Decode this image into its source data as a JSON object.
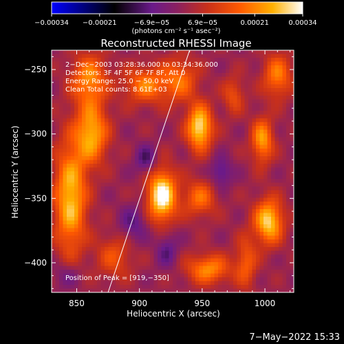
{
  "chart_data": {
    "type": "heatmap",
    "title": "Reconstructed RHESSI Image",
    "xlabel": "Heliocentric X (arcsec)",
    "ylabel": "Heliocentric Y (arcsec)",
    "xlim": [
      830,
      1023
    ],
    "ylim": [
      -423,
      -235
    ],
    "xticks": [
      850,
      900,
      950,
      1000
    ],
    "yticks": [
      -250,
      -300,
      -350,
      -400
    ],
    "xtick_labels": [
      "850",
      "900",
      "950",
      "1000"
    ],
    "ytick_labels": [
      "−250",
      "−300",
      "−350",
      "−400"
    ],
    "colorbar": {
      "min": -0.00034,
      "max": 0.00034,
      "ticks": [
        -0.00034,
        -0.00021,
        -6.9e-05,
        6.9e-05,
        0.00021,
        0.00034
      ],
      "tick_labels": [
        "−0.00034",
        "−0.00021",
        "−6.9e−05",
        "6.9e−05",
        "0.00021",
        "0.00034"
      ],
      "units": "(photons cm⁻² s⁻¹ asec⁻²)"
    },
    "annotations": [
      "2−Dec−2003 03:28:36.000 to 03:34:36.000",
      "Detectors: 3F 4F 5F 6F 7F 8F, Att 0",
      "Energy Range: 25.0 − 50.0 keV",
      "Clean     Total counts: 8.61E+03",
      "Position of Peak = [919,−350]"
    ],
    "limb_line": {
      "x": [
        875,
        940
      ],
      "y": [
        -423,
        -235
      ]
    },
    "blobs": [
      {
        "x": 918,
        "y": -348,
        "sx": 8,
        "sy": 14,
        "v": 0.00034
      },
      {
        "x": 948,
        "y": -295,
        "sx": 7,
        "sy": 12,
        "v": 0.0003
      },
      {
        "x": 845,
        "y": -350,
        "sx": 9,
        "sy": 30,
        "v": 0.00026
      },
      {
        "x": 862,
        "y": -300,
        "sx": 9,
        "sy": 16,
        "v": 0.00024
      },
      {
        "x": 860,
        "y": -258,
        "sx": 10,
        "sy": 14,
        "v": 0.0002
      },
      {
        "x": 905,
        "y": -262,
        "sx": 12,
        "sy": 10,
        "v": 0.00018
      },
      {
        "x": 932,
        "y": -258,
        "sx": 10,
        "sy": 12,
        "v": 0.00016
      },
      {
        "x": 1003,
        "y": -368,
        "sx": 8,
        "sy": 12,
        "v": 0.00028
      },
      {
        "x": 998,
        "y": -305,
        "sx": 6,
        "sy": 12,
        "v": 0.00022
      },
      {
        "x": 1010,
        "y": -255,
        "sx": 8,
        "sy": 12,
        "v": 0.00018
      },
      {
        "x": 955,
        "y": -405,
        "sx": 12,
        "sy": 8,
        "v": 0.0002
      },
      {
        "x": 948,
        "y": -350,
        "sx": 9,
        "sy": 10,
        "v": 0.00016
      },
      {
        "x": 985,
        "y": -400,
        "sx": 6,
        "sy": 14,
        "v": 0.00014
      },
      {
        "x": 880,
        "y": -395,
        "sx": 10,
        "sy": 12,
        "v": 0.00012
      },
      {
        "x": 975,
        "y": -270,
        "sx": 6,
        "sy": 10,
        "v": 0.00012
      },
      {
        "x": 905,
        "y": -320,
        "sx": 6,
        "sy": 8,
        "v": -0.00012
      },
      {
        "x": 895,
        "y": -370,
        "sx": 8,
        "sy": 10,
        "v": -0.0001
      },
      {
        "x": 965,
        "y": -330,
        "sx": 6,
        "sy": 8,
        "v": -0.00012
      },
      {
        "x": 922,
        "y": -390,
        "sx": 6,
        "sy": 10,
        "v": -0.0001
      },
      {
        "x": 842,
        "y": -410,
        "sx": 8,
        "sy": 8,
        "v": -8e-05
      }
    ],
    "grid": false
  },
  "timestamp": "7−May−2022 15:33"
}
